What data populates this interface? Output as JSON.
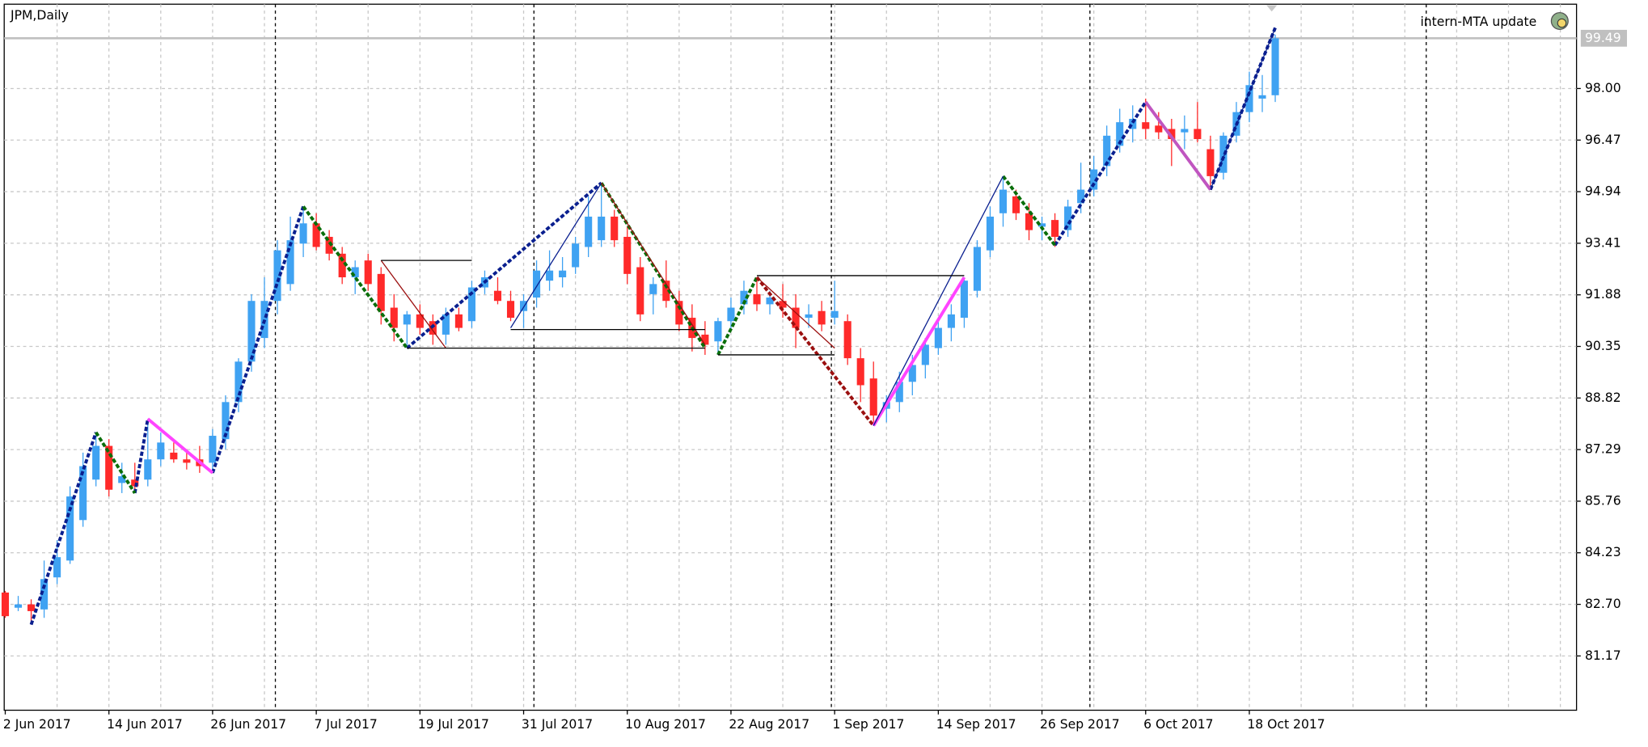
{
  "chart_data": {
    "type": "candlestick",
    "title": "JPM,Daily",
    "annotation": "intern-MTA update",
    "categories": [
      "2 Jun 2017",
      null,
      null,
      null,
      null,
      null,
      null,
      null,
      "14 Jun 2017",
      null,
      null,
      null,
      null,
      null,
      null,
      null,
      "26 Jun 2017",
      null,
      null,
      null,
      null,
      null,
      null,
      null,
      "7 Jul 2017",
      null,
      null,
      null,
      null,
      null,
      null,
      null,
      "19 Jul 2017",
      null,
      null,
      null,
      null,
      null,
      null,
      null,
      "31 Jul 2017",
      null,
      null,
      null,
      null,
      null,
      null,
      null,
      "10 Aug 2017",
      null,
      null,
      null,
      null,
      null,
      null,
      null,
      "22 Aug 2017",
      null,
      null,
      null,
      null,
      null,
      null,
      null,
      "1 Sep 2017",
      null,
      null,
      null,
      null,
      null,
      null,
      null,
      "14 Sep 2017",
      null,
      null,
      null,
      null,
      null,
      null,
      null,
      "26 Sep 2017",
      null,
      null,
      null,
      null,
      null,
      null,
      null,
      "6 Oct 2017",
      null,
      null,
      null,
      null,
      null,
      null,
      null,
      "18 Oct 2017",
      null,
      null
    ],
    "values": [
      [
        83.05,
        83.1,
        82.3,
        82.35
      ],
      [
        82.6,
        82.95,
        82.5,
        82.7
      ],
      [
        82.7,
        82.85,
        82.1,
        82.5
      ],
      [
        82.55,
        84.0,
        82.3,
        83.45
      ],
      [
        83.5,
        84.6,
        83.3,
        84.1
      ],
      [
        84.0,
        86.2,
        83.9,
        85.9
      ],
      [
        85.2,
        87.2,
        85.0,
        86.8
      ],
      [
        86.4,
        87.8,
        86.2,
        87.4
      ],
      [
        87.4,
        87.6,
        85.9,
        86.1
      ],
      [
        86.3,
        86.9,
        86.0,
        86.5
      ],
      [
        86.4,
        86.9,
        86.0,
        86.2
      ],
      [
        86.4,
        88.2,
        86.2,
        87.0
      ],
      [
        87.0,
        87.8,
        86.8,
        87.5
      ],
      [
        87.2,
        87.5,
        86.9,
        87.0
      ],
      [
        87.0,
        87.3,
        86.7,
        86.9
      ],
      [
        87.0,
        87.4,
        86.6,
        86.8
      ],
      [
        86.9,
        87.9,
        86.6,
        87.7
      ],
      [
        87.6,
        88.9,
        87.3,
        88.7
      ],
      [
        88.7,
        90.0,
        88.4,
        89.9
      ],
      [
        89.9,
        91.9,
        89.6,
        91.7
      ],
      [
        90.6,
        92.4,
        90.3,
        91.7
      ],
      [
        91.7,
        93.5,
        91.3,
        93.2
      ],
      [
        92.2,
        94.2,
        92.0,
        93.5
      ],
      [
        93.4,
        94.5,
        93.0,
        94.0
      ],
      [
        94.0,
        94.3,
        93.2,
        93.3
      ],
      [
        93.6,
        93.8,
        92.9,
        93.1
      ],
      [
        93.1,
        93.3,
        92.2,
        92.4
      ],
      [
        92.4,
        92.9,
        91.9,
        92.7
      ],
      [
        92.9,
        93.1,
        92.0,
        92.2
      ],
      [
        92.5,
        92.7,
        91.0,
        91.4
      ],
      [
        91.5,
        91.9,
        90.5,
        90.9
      ],
      [
        91.0,
        91.4,
        90.3,
        91.3
      ],
      [
        91.3,
        91.6,
        90.7,
        90.9
      ],
      [
        91.1,
        91.3,
        90.4,
        90.7
      ],
      [
        90.7,
        91.5,
        90.4,
        91.3
      ],
      [
        91.3,
        91.5,
        90.8,
        90.9
      ],
      [
        91.1,
        92.3,
        90.9,
        92.1
      ],
      [
        92.1,
        92.6,
        91.9,
        92.4
      ],
      [
        92.0,
        92.4,
        91.6,
        91.7
      ],
      [
        91.7,
        92.0,
        91.1,
        91.2
      ],
      [
        91.4,
        91.9,
        90.9,
        91.7
      ],
      [
        91.8,
        92.9,
        91.5,
        92.6
      ],
      [
        92.3,
        93.2,
        92.0,
        92.6
      ],
      [
        92.4,
        93.0,
        92.1,
        92.6
      ],
      [
        92.7,
        93.6,
        92.5,
        93.4
      ],
      [
        93.3,
        94.8,
        93.0,
        94.2
      ],
      [
        93.5,
        95.2,
        93.3,
        94.2
      ],
      [
        94.2,
        94.4,
        93.3,
        93.5
      ],
      [
        93.6,
        93.9,
        92.2,
        92.5
      ],
      [
        92.7,
        93.0,
        91.1,
        91.3
      ],
      [
        91.9,
        92.4,
        91.3,
        92.2
      ],
      [
        92.3,
        92.9,
        91.5,
        91.7
      ],
      [
        91.7,
        92.0,
        90.8,
        91.0
      ],
      [
        91.2,
        91.6,
        90.2,
        90.6
      ],
      [
        90.7,
        91.1,
        90.1,
        90.4
      ],
      [
        90.5,
        91.2,
        90.1,
        91.1
      ],
      [
        91.1,
        91.8,
        90.8,
        91.5
      ],
      [
        91.6,
        92.3,
        91.3,
        92.0
      ],
      [
        91.9,
        92.4,
        91.4,
        91.6
      ],
      [
        91.6,
        92.0,
        91.3,
        91.8
      ],
      [
        91.7,
        92.2,
        91.2,
        91.5
      ],
      [
        91.5,
        91.9,
        90.3,
        90.9
      ],
      [
        91.2,
        91.6,
        90.9,
        91.3
      ],
      [
        91.4,
        91.7,
        90.8,
        91.0
      ],
      [
        91.2,
        92.3,
        91.0,
        91.4
      ],
      [
        91.1,
        91.3,
        89.8,
        90.0
      ],
      [
        90.0,
        90.3,
        88.7,
        89.2
      ],
      [
        89.4,
        89.9,
        88.0,
        88.3
      ],
      [
        88.5,
        88.9,
        88.1,
        88.7
      ],
      [
        88.7,
        89.6,
        88.4,
        89.3
      ],
      [
        89.3,
        90.1,
        88.9,
        89.8
      ],
      [
        89.8,
        90.6,
        89.4,
        90.4
      ],
      [
        90.3,
        91.2,
        90.1,
        90.9
      ],
      [
        90.9,
        91.6,
        90.5,
        91.3
      ],
      [
        91.2,
        92.4,
        90.9,
        92.3
      ],
      [
        92.0,
        93.5,
        91.8,
        93.3
      ],
      [
        93.2,
        94.5,
        93.0,
        94.2
      ],
      [
        94.3,
        95.4,
        93.9,
        95.0
      ],
      [
        94.8,
        95.0,
        94.1,
        94.3
      ],
      [
        94.3,
        94.6,
        93.5,
        93.8
      ],
      [
        93.9,
        94.2,
        93.5,
        94.0
      ],
      [
        94.1,
        94.3,
        93.3,
        93.6
      ],
      [
        93.8,
        94.7,
        93.6,
        94.5
      ],
      [
        94.6,
        95.8,
        94.3,
        95.0
      ],
      [
        95.0,
        96.0,
        94.8,
        95.6
      ],
      [
        95.7,
        96.9,
        95.4,
        96.6
      ],
      [
        96.3,
        97.4,
        96.1,
        97.0
      ],
      [
        96.8,
        97.5,
        96.4,
        97.1
      ],
      [
        97.0,
        97.7,
        96.5,
        96.8
      ],
      [
        96.9,
        97.3,
        96.5,
        96.7
      ],
      [
        96.8,
        97.1,
        95.7,
        96.5
      ],
      [
        96.7,
        97.2,
        96.2,
        96.8
      ],
      [
        96.8,
        97.6,
        96.4,
        96.5
      ],
      [
        96.2,
        96.6,
        95.0,
        95.4
      ],
      [
        95.5,
        96.7,
        95.3,
        96.6
      ],
      [
        96.6,
        97.6,
        96.4,
        97.3
      ],
      [
        97.3,
        98.5,
        97.0,
        98.1
      ],
      [
        97.7,
        98.4,
        97.3,
        97.8
      ],
      [
        97.8,
        99.6,
        97.6,
        99.49
      ]
    ],
    "up_color": "#3fa2f2",
    "down_color": "#ff2a2a",
    "ylim": [
      79.56,
      100.5
    ],
    "yticks": [
      81.17,
      {
        "value": 82.7,
        "label": "82.70"
      },
      84.23,
      85.76,
      87.29,
      88.82,
      90.35,
      91.88,
      93.41,
      94.94,
      96.47,
      {
        "value": 98,
        "label": "98.00"
      }
    ],
    "current_price": 99.49,
    "grid": true,
    "lines": [
      {
        "color": "#0a1f8f",
        "style": "dashed",
        "points": [
          [
            2,
            82.1
          ],
          [
            7,
            87.8
          ]
        ]
      },
      {
        "color": "#0a1f8f",
        "style": "dashed",
        "points": [
          [
            10,
            86.0
          ],
          [
            11,
            88.2
          ]
        ]
      },
      {
        "color": "#0a1f8f",
        "style": "dashed",
        "points": [
          [
            16,
            86.6
          ],
          [
            23,
            94.5
          ]
        ]
      },
      {
        "color": "#0a1f8f",
        "style": "dashed",
        "points": [
          [
            31,
            90.3
          ],
          [
            46,
            95.2
          ]
        ]
      },
      {
        "color": "#0a1f8f",
        "style": "dashed",
        "points": [
          [
            81,
            93.35
          ],
          [
            88,
            97.6
          ]
        ]
      },
      {
        "color": "#0a1f8f",
        "style": "dashed",
        "points": [
          [
            93,
            95.0
          ],
          [
            98,
            99.8
          ]
        ]
      },
      {
        "color": "#0a6e0a",
        "style": "dashed",
        "points": [
          [
            7,
            87.8
          ],
          [
            10,
            86.0
          ]
        ]
      },
      {
        "color": "#0a6e0a",
        "style": "dashed",
        "points": [
          [
            23,
            94.5
          ],
          [
            31,
            90.3
          ]
        ]
      },
      {
        "color": "#0a6e0a",
        "style": "dashed",
        "points": [
          [
            46,
            95.2
          ],
          [
            54,
            90.3
          ]
        ]
      },
      {
        "color": "#0a6e0a",
        "style": "dashed",
        "points": [
          [
            55,
            90.1
          ],
          [
            58,
            92.4
          ]
        ]
      },
      {
        "color": "#0a6e0a",
        "style": "dashed",
        "points": [
          [
            77,
            95.4
          ],
          [
            81,
            93.35
          ]
        ]
      },
      {
        "color": "#9b1010",
        "style": "dashed",
        "points": [
          [
            58,
            92.4
          ],
          [
            67,
            88.0
          ]
        ]
      },
      {
        "color": "#ff44ff",
        "style": "solid",
        "points": [
          [
            11,
            88.2
          ],
          [
            16,
            86.6
          ]
        ]
      },
      {
        "color": "#ff44ff",
        "style": "solid",
        "points": [
          [
            67,
            88.0
          ],
          [
            74,
            92.4
          ]
        ]
      },
      {
        "color": "#c055c0",
        "style": "solid",
        "points": [
          [
            88,
            97.6
          ],
          [
            93,
            95.0
          ]
        ]
      },
      {
        "color": "#0a1f8f",
        "style": "thin",
        "points": [
          [
            39,
            90.9
          ],
          [
            46,
            95.2
          ]
        ]
      },
      {
        "color": "#0a1f8f",
        "style": "thin",
        "points": [
          [
            67,
            88.0
          ],
          [
            77,
            95.4
          ]
        ]
      },
      {
        "color": "#0a1f8f",
        "style": "thin",
        "points": [
          [
            93,
            95.0
          ],
          [
            98,
            99.8
          ]
        ]
      },
      {
        "color": "#9b1010",
        "style": "thin",
        "points": [
          [
            29,
            92.9
          ],
          [
            34,
            90.3
          ]
        ]
      },
      {
        "color": "#9b1010",
        "style": "thin",
        "points": [
          [
            46,
            95.2
          ],
          [
            54,
            90.4
          ]
        ]
      },
      {
        "color": "#9b1010",
        "style": "thin",
        "points": [
          [
            58,
            92.4
          ],
          [
            64,
            90.3
          ]
        ]
      },
      {
        "color": "#000000",
        "style": "thin",
        "points": [
          [
            29,
            92.9
          ],
          [
            36,
            92.9
          ]
        ]
      },
      {
        "color": "#000000",
        "style": "thin",
        "points": [
          [
            31,
            90.3
          ],
          [
            54,
            90.3
          ]
        ]
      },
      {
        "color": "#000000",
        "style": "thin",
        "points": [
          [
            39,
            90.85
          ],
          [
            54,
            90.85
          ]
        ]
      },
      {
        "color": "#000000",
        "style": "thin",
        "points": [
          [
            58,
            92.45
          ],
          [
            74,
            92.45
          ]
        ]
      },
      {
        "color": "#000000",
        "style": "thin",
        "points": [
          [
            55,
            90.1
          ],
          [
            64,
            90.1
          ]
        ]
      }
    ]
  }
}
